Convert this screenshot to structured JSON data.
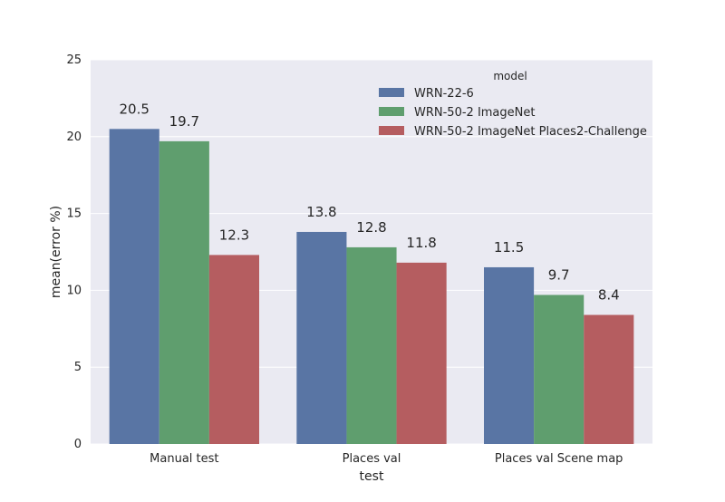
{
  "chart_data": {
    "type": "bar",
    "categories": [
      "Manual test",
      "Places val",
      "Places val Scene map"
    ],
    "series": [
      {
        "name": "WRN-22-6",
        "values": [
          20.5,
          13.8,
          11.5
        ],
        "labels": [
          "20.5",
          "13.8",
          "11.5"
        ],
        "color": "#5975a4"
      },
      {
        "name": "WRN-50-2 ImageNet",
        "values": [
          19.7,
          12.8,
          9.7
        ],
        "labels": [
          "19.7",
          "12.8",
          "9.7"
        ],
        "color": "#5f9e6e"
      },
      {
        "name": "WRN-50-2 ImageNet Places2-Challenge",
        "values": [
          12.3,
          11.8,
          8.4
        ],
        "labels": [
          "12.3",
          "11.8",
          "8.4"
        ],
        "color": "#b55d60"
      }
    ],
    "xlabel": "test",
    "ylabel": "mean(error %)",
    "ylim": [
      0,
      25
    ],
    "yticks": [
      "0",
      "5",
      "10",
      "15",
      "20",
      "25"
    ],
    "legend": {
      "title": "model",
      "placement": "top-right"
    },
    "grid": true,
    "background": "#eaeaf2"
  }
}
